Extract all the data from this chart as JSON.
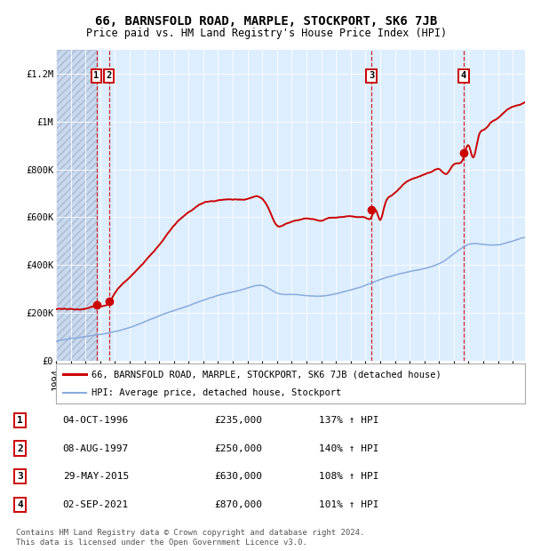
{
  "title": "66, BARNSFOLD ROAD, MARPLE, STOCKPORT, SK6 7JB",
  "subtitle": "Price paid vs. HM Land Registry's House Price Index (HPI)",
  "ylim": [
    0,
    1300000
  ],
  "yticks": [
    0,
    200000,
    400000,
    600000,
    800000,
    1000000,
    1200000
  ],
  "ytick_labels": [
    "£0",
    "£200K",
    "£400K",
    "£600K",
    "£800K",
    "£1M",
    "£1.2M"
  ],
  "xlim_start": 1994.0,
  "xlim_end": 2025.83,
  "background_color": "#ffffff",
  "plot_bg_color": "#ddeeff",
  "grid_color": "#ffffff",
  "red_line_color": "#cc0000",
  "blue_line_color": "#88aadd",
  "sale_marker_color": "#cc0000",
  "dashed_line_color": "#cc0000",
  "legend_border_color": "#aaaaaa",
  "annotation_box_color": "#ffffff",
  "annotation_border_color": "#cc0000",
  "title_fontsize": 10,
  "subtitle_fontsize": 8.5,
  "tick_fontsize": 7.5,
  "footer_fontsize": 6.5,
  "sales": [
    {
      "num": 1,
      "date": "04-OCT-1996",
      "price": 235000,
      "year": 1996.75,
      "pct": "137%",
      "dir": "↑"
    },
    {
      "num": 2,
      "date": "08-AUG-1997",
      "price": 250000,
      "year": 1997.6,
      "pct": "140%",
      "dir": "↑"
    },
    {
      "num": 3,
      "date": "29-MAY-2015",
      "price": 630000,
      "year": 2015.4,
      "pct": "108%",
      "dir": "↑"
    },
    {
      "num": 4,
      "date": "02-SEP-2021",
      "price": 870000,
      "year": 2021.67,
      "pct": "101%",
      "dir": "↑"
    }
  ],
  "footer_line1": "Contains HM Land Registry data © Crown copyright and database right 2024.",
  "footer_line2": "This data is licensed under the Open Government Licence v3.0.",
  "legend_label_red": "66, BARNSFOLD ROAD, MARPLE, STOCKPORT, SK6 7JB (detached house)",
  "legend_label_blue": "HPI: Average price, detached house, Stockport"
}
